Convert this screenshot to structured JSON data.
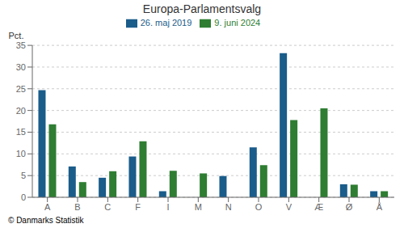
{
  "chart_data": {
    "type": "bar",
    "title": "Europa-Parlamentsvalg",
    "categories": [
      "A",
      "B",
      "C",
      "F",
      "I",
      "M",
      "N",
      "O",
      "V",
      "Æ",
      "Ø",
      "Å"
    ],
    "series": [
      {
        "name": "26. maj 2019",
        "color": "#1a5c8a",
        "values": [
          24.7,
          7.1,
          4.5,
          9.4,
          1.4,
          0.0,
          4.9,
          11.5,
          33.2,
          0.0,
          3.0,
          1.4
        ]
      },
      {
        "name": "9. juni 2024",
        "color": "#2e7d32",
        "values": [
          16.8,
          3.5,
          6.0,
          12.9,
          6.1,
          5.5,
          0.0,
          7.4,
          17.8,
          20.5,
          2.9,
          1.4
        ]
      }
    ],
    "ylabel": "Pct.",
    "ylim": [
      0,
      35
    ],
    "yticks": [
      0,
      5,
      10,
      15,
      20,
      25,
      30,
      35
    ],
    "grid": true,
    "legend": "top",
    "footer": "© Danmarks Statistik"
  }
}
